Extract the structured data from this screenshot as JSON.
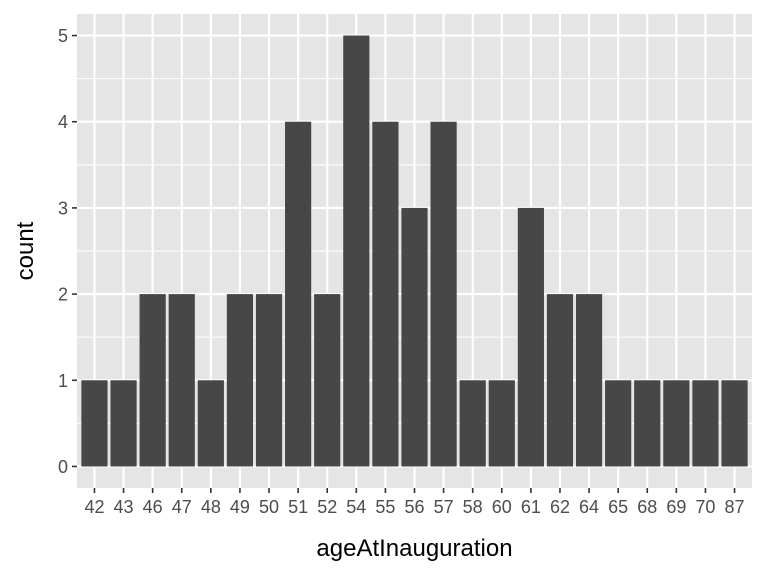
{
  "chart_data": {
    "type": "bar",
    "xlabel": "ageAtInauguration",
    "ylabel": "count",
    "categories": [
      "42",
      "43",
      "46",
      "47",
      "48",
      "49",
      "50",
      "51",
      "52",
      "54",
      "55",
      "56",
      "57",
      "58",
      "60",
      "61",
      "62",
      "64",
      "65",
      "68",
      "69",
      "70",
      "87"
    ],
    "values": [
      1,
      1,
      2,
      2,
      1,
      2,
      2,
      4,
      2,
      5,
      4,
      3,
      4,
      1,
      1,
      3,
      2,
      2,
      1,
      1,
      1,
      1,
      1
    ],
    "ylim": [
      -0.25,
      5.25
    ],
    "yticks": [
      "0",
      "1",
      "2",
      "3",
      "4",
      "5"
    ],
    "grid": true,
    "colors": {
      "bar": "#474747",
      "panel": "#e5e5e5",
      "grid": "#ffffff",
      "tick_text": "#4d4d4d",
      "tick_mark": "#333333"
    }
  }
}
